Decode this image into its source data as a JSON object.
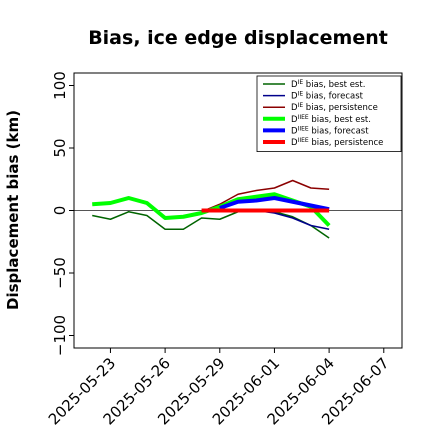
{
  "chart_data": {
    "type": "line",
    "title": "Bias, ice edge displacement",
    "xlabel": "",
    "ylabel": "Displacement bias (km)",
    "ylim": [
      -110,
      110
    ],
    "xlim": [
      "2025-05-21",
      "2025-06-08"
    ],
    "yticks": [
      -100,
      -50,
      0,
      50,
      100
    ],
    "xticks": [
      "2025-05-23",
      "2025-05-26",
      "2025-05-29",
      "2025-06-01",
      "2025-06-04",
      "2025-06-07"
    ],
    "highlight_tick": "2025-05-29",
    "highlight_color": "#228b22",
    "zero_line": true,
    "grid": false,
    "legend_position": "top-right",
    "series": [
      {
        "name": "D^IE bias, best est.",
        "sup": "IE",
        "color": "#006400",
        "linewidth": 1.5,
        "x": [
          "2025-05-22",
          "2025-05-23",
          "2025-05-24",
          "2025-05-25",
          "2025-05-26",
          "2025-05-27",
          "2025-05-28",
          "2025-05-29",
          "2025-05-30",
          "2025-05-31",
          "2025-06-01",
          "2025-06-02",
          "2025-06-03",
          "2025-06-04"
        ],
        "y": [
          -4,
          -7,
          -1,
          -4,
          -15,
          -15,
          -6,
          -7,
          -1,
          0,
          -1,
          -5,
          -12,
          -22
        ]
      },
      {
        "name": "D^IE bias, forecast",
        "sup": "IE",
        "color": "#00008b",
        "linewidth": 1.5,
        "x": [
          "2025-05-29",
          "2025-05-30",
          "2025-05-31",
          "2025-06-01",
          "2025-06-02",
          "2025-06-03",
          "2025-06-04"
        ],
        "y": [
          -1,
          -1,
          0,
          -2,
          -6,
          -12,
          -15
        ]
      },
      {
        "name": "D^IE bias, persistence",
        "sup": "IE",
        "color": "#8b0000",
        "linewidth": 1.5,
        "x": [
          "2025-05-28",
          "2025-05-29",
          "2025-05-30",
          "2025-05-31",
          "2025-06-01",
          "2025-06-02",
          "2025-06-03",
          "2025-06-04"
        ],
        "y": [
          -1,
          5,
          13,
          16,
          18,
          24,
          18,
          17
        ]
      },
      {
        "name": "D^IIEE bias, best est.",
        "sup": "IIEE",
        "color": "#00ff00",
        "linewidth": 4,
        "x": [
          "2025-05-22",
          "2025-05-23",
          "2025-05-24",
          "2025-05-25",
          "2025-05-26",
          "2025-05-27",
          "2025-05-28",
          "2025-05-29",
          "2025-05-30",
          "2025-05-31",
          "2025-06-01",
          "2025-06-02",
          "2025-06-03",
          "2025-06-04"
        ],
        "y": [
          5,
          6,
          10,
          6,
          -6,
          -5,
          -2,
          3,
          9,
          11,
          13,
          8,
          3,
          -12
        ]
      },
      {
        "name": "D^IIEE bias, forecast",
        "sup": "IIEE",
        "color": "#0000ff",
        "linewidth": 4,
        "x": [
          "2025-05-29",
          "2025-05-30",
          "2025-05-31",
          "2025-06-01",
          "2025-06-02",
          "2025-06-03",
          "2025-06-04"
        ],
        "y": [
          2,
          7,
          8,
          10,
          7,
          4,
          1
        ]
      },
      {
        "name": "D^IIEE bias, persistence",
        "sup": "IIEE",
        "color": "#ff0000",
        "linewidth": 4,
        "x": [
          "2025-05-28",
          "2025-05-29",
          "2025-05-30",
          "2025-05-31",
          "2025-06-01",
          "2025-06-02",
          "2025-06-03",
          "2025-06-04"
        ],
        "y": [
          0,
          0,
          0,
          0,
          0,
          0,
          0,
          0
        ]
      }
    ]
  }
}
